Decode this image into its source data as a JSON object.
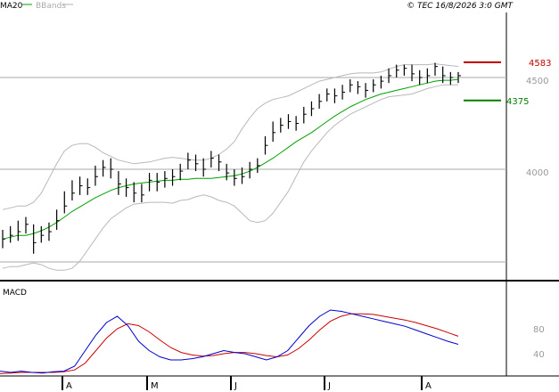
{
  "header": {
    "legend_items": [
      {
        "label": "MA20",
        "color": "#00a000"
      },
      {
        "label": "BBands",
        "color": "#b0b0b0"
      }
    ],
    "copyright": "© TEC 16/8/2026 3:0 GMT"
  },
  "macd_panel": {
    "label": "MACD"
  },
  "colors": {
    "price": "#000000",
    "ma20": "#00a000",
    "bbands": "#b8b8b8",
    "resistance": "#c00000",
    "support": "#008000",
    "macd_line": "#0000cc",
    "signal_line": "#cc0000",
    "grid": "#aaaaaa"
  },
  "chart_data": [
    {
      "type": "ohlc",
      "panel": "price",
      "y_tick_labels": [
        "4000",
        "4500"
      ],
      "y_ticks": [
        4000,
        4500
      ],
      "ylim": [
        3500,
        4770
      ],
      "x_tick_labels": [
        "A",
        "M",
        "J",
        "J",
        "A"
      ],
      "levels": [
        {
          "label": "4583",
          "value": 4583,
          "color": "#c00000"
        },
        {
          "label": "4375",
          "value": 4375,
          "color": "#008000"
        }
      ],
      "series": [
        {
          "name": "MA20",
          "values": [
            3620,
            3630,
            3640,
            3640,
            3650,
            3665,
            3685,
            3710,
            3740,
            3770,
            3795,
            3820,
            3845,
            3865,
            3885,
            3900,
            3910,
            3920,
            3925,
            3930,
            3935,
            3940,
            3940,
            3945,
            3945,
            3950,
            3950,
            3950,
            3955,
            3960,
            3965,
            3975,
            3990,
            4010,
            4035,
            4060,
            4090,
            4120,
            4150,
            4175,
            4200,
            4230,
            4260,
            4290,
            4315,
            4340,
            4360,
            4380,
            4395,
            4410,
            4420,
            4430,
            4440,
            4450,
            4460,
            4470,
            4480,
            4485,
            4485,
            4490
          ]
        },
        {
          "name": "BBands upper",
          "values": [
            3780,
            3790,
            3800,
            3800,
            3820,
            3870,
            3950,
            4030,
            4100,
            4130,
            4140,
            4140,
            4120,
            4090,
            4070,
            4050,
            4040,
            4030,
            4035,
            4040,
            4050,
            4060,
            4065,
            4060,
            4055,
            4050,
            4050,
            4060,
            4080,
            4110,
            4150,
            4220,
            4280,
            4330,
            4360,
            4380,
            4390,
            4400,
            4420,
            4440,
            4460,
            4480,
            4490,
            4500,
            4510,
            4520,
            4525,
            4525,
            4525,
            4530,
            4545,
            4560,
            4570,
            4570,
            4570,
            4570,
            4575,
            4570,
            4565,
            4560
          ]
        },
        {
          "name": "BBands lower",
          "values": [
            3460,
            3470,
            3470,
            3480,
            3490,
            3480,
            3460,
            3450,
            3450,
            3460,
            3500,
            3560,
            3620,
            3680,
            3730,
            3760,
            3790,
            3810,
            3815,
            3820,
            3820,
            3820,
            3815,
            3830,
            3835,
            3850,
            3860,
            3850,
            3830,
            3820,
            3800,
            3760,
            3720,
            3710,
            3720,
            3760,
            3820,
            3880,
            3960,
            4040,
            4100,
            4150,
            4200,
            4240,
            4270,
            4300,
            4320,
            4340,
            4360,
            4380,
            4395,
            4400,
            4405,
            4410,
            4425,
            4440,
            4450,
            4460,
            4460,
            4460
          ]
        },
        {
          "name": "Close",
          "values": [
            3620,
            3640,
            3660,
            3700,
            3600,
            3640,
            3660,
            3720,
            3800,
            3870,
            3910,
            3900,
            3960,
            4010,
            4000,
            3920,
            3900,
            3870,
            3860,
            3940,
            3930,
            3950,
            3960,
            3990,
            4050,
            4030,
            4000,
            4060,
            4040,
            3980,
            3950,
            3960,
            4000,
            4020,
            4130,
            4200,
            4240,
            4260,
            4250,
            4300,
            4330,
            4370,
            4410,
            4400,
            4420,
            4460,
            4450,
            4430,
            4460,
            4480,
            4510,
            4540,
            4550,
            4520,
            4500,
            4510,
            4560,
            4510,
            4500,
            4510
          ]
        },
        {
          "name": "High",
          "values": [
            3670,
            3690,
            3720,
            3740,
            3700,
            3690,
            3710,
            3780,
            3880,
            3940,
            3960,
            3950,
            4020,
            4050,
            4060,
            3990,
            3950,
            3930,
            3920,
            3980,
            3980,
            3990,
            4000,
            4030,
            4090,
            4080,
            4060,
            4100,
            4080,
            4030,
            4000,
            4010,
            4040,
            4060,
            4180,
            4260,
            4280,
            4300,
            4290,
            4340,
            4370,
            4410,
            4440,
            4440,
            4460,
            4490,
            4480,
            4470,
            4490,
            4510,
            4550,
            4570,
            4570,
            4570,
            4540,
            4550,
            4580,
            4560,
            4530,
            4530
          ]
        },
        {
          "name": "Low",
          "values": [
            3570,
            3600,
            3610,
            3650,
            3540,
            3600,
            3610,
            3670,
            3760,
            3830,
            3860,
            3860,
            3910,
            3960,
            3950,
            3860,
            3850,
            3820,
            3820,
            3880,
            3880,
            3900,
            3910,
            3940,
            4000,
            3990,
            3960,
            4010,
            3990,
            3940,
            3910,
            3920,
            3950,
            3980,
            4080,
            4150,
            4200,
            4220,
            4210,
            4250,
            4290,
            4330,
            4370,
            4360,
            4380,
            4420,
            4410,
            4390,
            4420,
            4440,
            4470,
            4500,
            4510,
            4480,
            4460,
            4470,
            4510,
            4470,
            4460,
            4470
          ]
        }
      ]
    },
    {
      "type": "line",
      "panel": "macd",
      "title": "MACD",
      "y_tick_labels": [
        "40",
        "80"
      ],
      "y_ticks": [
        40,
        80
      ],
      "ylim": [
        0,
        120
      ],
      "series": [
        {
          "name": "MACD",
          "values": [
            12,
            10,
            12,
            10,
            9,
            11,
            12,
            20,
            45,
            70,
            90,
            100,
            85,
            60,
            45,
            35,
            30,
            30,
            32,
            35,
            40,
            45,
            42,
            40,
            35,
            30,
            35,
            45,
            65,
            85,
            100,
            110,
            108,
            104,
            100,
            96,
            92,
            88,
            84,
            78,
            72,
            66,
            60,
            55
          ]
        },
        {
          "name": "Signal",
          "values": [
            8,
            9,
            10,
            10,
            10,
            10,
            11,
            14,
            25,
            45,
            65,
            80,
            88,
            85,
            75,
            62,
            50,
            42,
            38,
            36,
            37,
            40,
            42,
            42,
            40,
            37,
            35,
            38,
            48,
            62,
            78,
            92,
            100,
            104,
            104,
            103,
            100,
            97,
            94,
            90,
            85,
            80,
            74,
            68
          ]
        }
      ]
    }
  ]
}
